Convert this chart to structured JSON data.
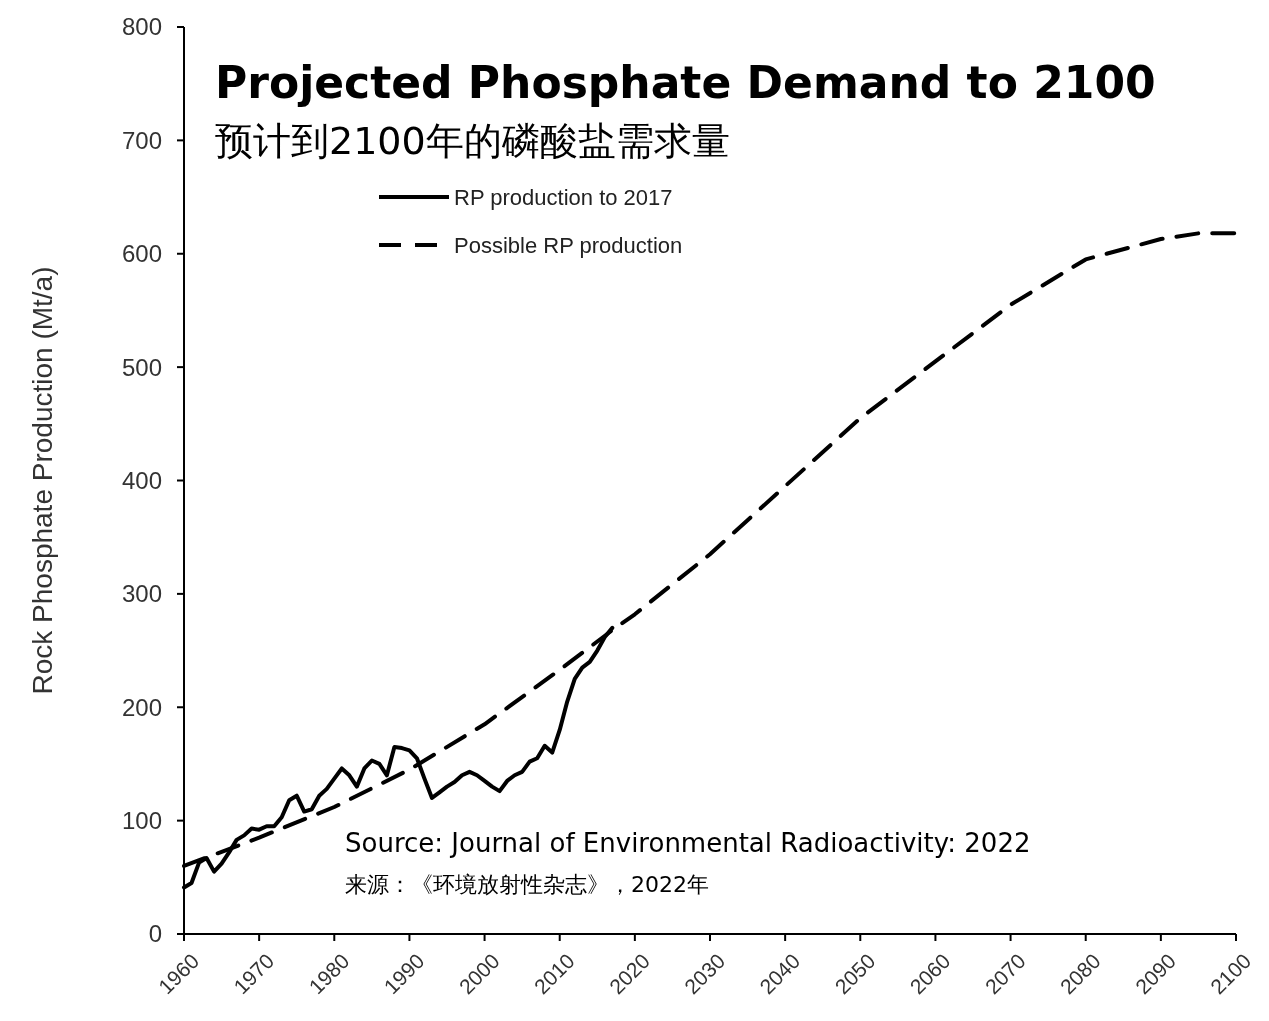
{
  "chart_data": {
    "type": "line",
    "title": "Projected Phosphate Demand to 2100",
    "subtitle": "预计到2100年的磷酸盐需求量",
    "ylabel": "Rock Phosphate Production (Mt/a)",
    "xlim": [
      1960,
      2100
    ],
    "xticks": [
      1960,
      1970,
      1980,
      1990,
      2000,
      2010,
      2020,
      2030,
      2040,
      2050,
      2060,
      2070,
      2080,
      2090,
      2100
    ],
    "ylim": [
      0,
      800
    ],
    "yticks": [
      0,
      100,
      200,
      300,
      400,
      500,
      600,
      700,
      800
    ],
    "grid": false,
    "legend": "top left",
    "series": [
      {
        "name": "RP production to 2017",
        "color": "#000000",
        "line_style": "solid",
        "x": [
          1960,
          1961,
          1962,
          1963,
          1964,
          1965,
          1966,
          1967,
          1968,
          1969,
          1970,
          1971,
          1972,
          1973,
          1974,
          1975,
          1976,
          1977,
          1978,
          1979,
          1980,
          1981,
          1982,
          1983,
          1984,
          1985,
          1986,
          1987,
          1988,
          1989,
          1990,
          1991,
          1992,
          1993,
          1994,
          1995,
          1996,
          1997,
          1998,
          1999,
          2000,
          2001,
          2002,
          2003,
          2004,
          2005,
          2006,
          2007,
          2008,
          2009,
          2010,
          2011,
          2012,
          2013,
          2014,
          2015,
          2016,
          2017
        ],
        "values": [
          41,
          45,
          63,
          67,
          55,
          62,
          72,
          83,
          87,
          93,
          92,
          95,
          95,
          103,
          118,
          122,
          108,
          110,
          122,
          128,
          137,
          146,
          140,
          130,
          146,
          153,
          150,
          140,
          165,
          164,
          162,
          155,
          137,
          120,
          125,
          130,
          134,
          140,
          143,
          140,
          135,
          130,
          126,
          135,
          140,
          143,
          152,
          155,
          166,
          160,
          180,
          205,
          225,
          235,
          240,
          250,
          262,
          270
        ]
      },
      {
        "name": "Possible RP production",
        "color": "#000000",
        "line_style": "dashed",
        "x": [
          1960,
          1970,
          1980,
          1990,
          2000,
          2010,
          2017,
          2020,
          2030,
          2040,
          2050,
          2060,
          2070,
          2080,
          2090,
          2095,
          2100
        ],
        "values": [
          60,
          85,
          112,
          145,
          185,
          233,
          268,
          282,
          335,
          395,
          455,
          505,
          555,
          595,
          613,
          618,
          618
        ]
      }
    ],
    "annotations": [
      "Source: Journal of Environmental Radioactivity:  2022",
      "来源：《环境放射性杂志》，2022年"
    ]
  }
}
